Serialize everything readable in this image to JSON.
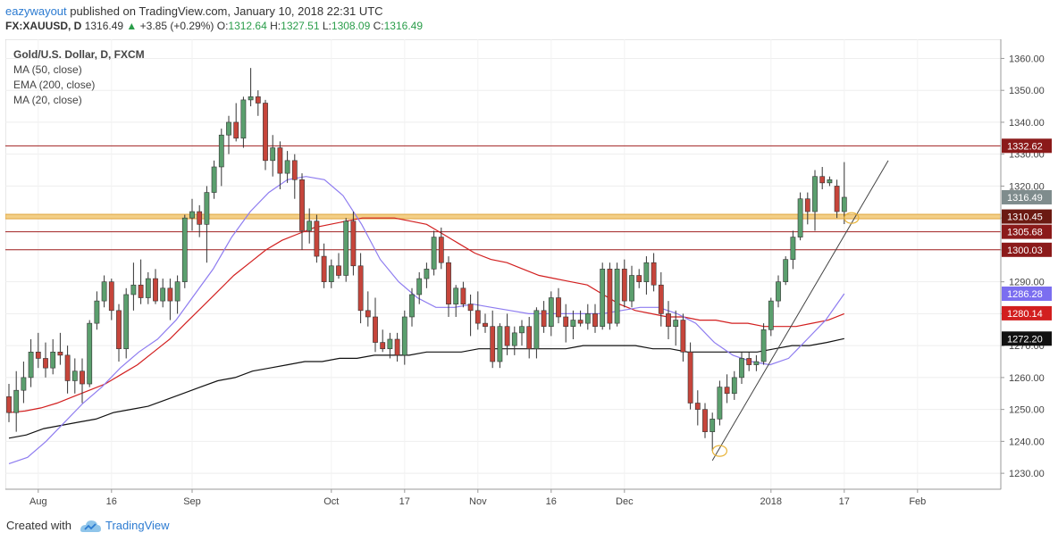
{
  "header": {
    "author": "eazywayout",
    "published_text": "published on TradingView.com, January 10, 2018 22:31 UTC",
    "symbol": "FX:XAUUSD, D",
    "last": "1316.49",
    "change_arrow": "▲",
    "change": "+3.85 (+0.29%)",
    "open_label": "O:",
    "open": "1312.64",
    "high_label": "H:",
    "high": "1327.51",
    "low_label": "L:",
    "low": "1308.09",
    "close_label": "C:",
    "close": "1316.49"
  },
  "legend": {
    "title": "Gold/U.S. Dollar, D, FXCM",
    "lines": [
      "MA (50, close)",
      "EMA (200, close)",
      "MA (20, close)"
    ]
  },
  "footer": {
    "created_with": "Created with",
    "brand": "TradingView"
  },
  "colors": {
    "up": "#5b9f6e",
    "down": "#c6453b",
    "ma50": "#d21f1f",
    "ema200": "#111111",
    "ma20": "#8e7cf0",
    "hline": "#a02020",
    "band": "#e0a640",
    "trend": "#444444"
  },
  "chart_data": {
    "type": "candlestick",
    "title": "Gold/U.S. Dollar, D, FXCM",
    "ylim": [
      1225,
      1366
    ],
    "y_ticks": [
      1230,
      1240,
      1250,
      1260,
      1270,
      1280,
      1290,
      1300,
      1310,
      1320,
      1330,
      1340,
      1350,
      1360
    ],
    "x_ticks": [
      "Aug",
      "16",
      "Sep",
      "Oct",
      "17",
      "Nov",
      "16",
      "Dec",
      "2018",
      "17",
      "Feb"
    ],
    "candles": [
      {
        "o": 1254,
        "h": 1258,
        "l": 1246,
        "c": 1249
      },
      {
        "o": 1249,
        "h": 1262,
        "l": 1243,
        "c": 1256
      },
      {
        "o": 1256,
        "h": 1265,
        "l": 1252,
        "c": 1260
      },
      {
        "o": 1260,
        "h": 1272,
        "l": 1257,
        "c": 1268
      },
      {
        "o": 1268,
        "h": 1274,
        "l": 1263,
        "c": 1266
      },
      {
        "o": 1266,
        "h": 1271,
        "l": 1260,
        "c": 1263
      },
      {
        "o": 1263,
        "h": 1272,
        "l": 1261,
        "c": 1268
      },
      {
        "o": 1268,
        "h": 1274,
        "l": 1264,
        "c": 1267
      },
      {
        "o": 1267,
        "h": 1270,
        "l": 1255,
        "c": 1259
      },
      {
        "o": 1259,
        "h": 1266,
        "l": 1255,
        "c": 1262
      },
      {
        "o": 1262,
        "h": 1266,
        "l": 1252,
        "c": 1258
      },
      {
        "o": 1258,
        "h": 1278,
        "l": 1257,
        "c": 1277
      },
      {
        "o": 1277,
        "h": 1287,
        "l": 1275,
        "c": 1284
      },
      {
        "o": 1284,
        "h": 1292,
        "l": 1282,
        "c": 1290
      },
      {
        "o": 1290,
        "h": 1291,
        "l": 1278,
        "c": 1281
      },
      {
        "o": 1281,
        "h": 1283,
        "l": 1265,
        "c": 1269
      },
      {
        "o": 1269,
        "h": 1288,
        "l": 1266,
        "c": 1286
      },
      {
        "o": 1286,
        "h": 1296,
        "l": 1281,
        "c": 1289
      },
      {
        "o": 1289,
        "h": 1297,
        "l": 1283,
        "c": 1285
      },
      {
        "o": 1285,
        "h": 1293,
        "l": 1283,
        "c": 1291
      },
      {
        "o": 1291,
        "h": 1294,
        "l": 1283,
        "c": 1284
      },
      {
        "o": 1284,
        "h": 1291,
        "l": 1282,
        "c": 1288
      },
      {
        "o": 1288,
        "h": 1291,
        "l": 1278,
        "c": 1284
      },
      {
        "o": 1284,
        "h": 1292,
        "l": 1280,
        "c": 1290
      },
      {
        "o": 1290,
        "h": 1311,
        "l": 1288,
        "c": 1310
      },
      {
        "o": 1310,
        "h": 1316,
        "l": 1306,
        "c": 1312
      },
      {
        "o": 1312,
        "h": 1314,
        "l": 1304,
        "c": 1308
      },
      {
        "o": 1308,
        "h": 1320,
        "l": 1296,
        "c": 1318
      },
      {
        "o": 1318,
        "h": 1328,
        "l": 1316,
        "c": 1326
      },
      {
        "o": 1326,
        "h": 1338,
        "l": 1320,
        "c": 1336
      },
      {
        "o": 1336,
        "h": 1342,
        "l": 1330,
        "c": 1340
      },
      {
        "o": 1340,
        "h": 1346,
        "l": 1334,
        "c": 1335
      },
      {
        "o": 1335,
        "h": 1348,
        "l": 1332,
        "c": 1347
      },
      {
        "o": 1347,
        "h": 1357,
        "l": 1345,
        "c": 1348
      },
      {
        "o": 1348,
        "h": 1350,
        "l": 1342,
        "c": 1346
      },
      {
        "o": 1346,
        "h": 1347,
        "l": 1325,
        "c": 1328
      },
      {
        "o": 1328,
        "h": 1336,
        "l": 1323,
        "c": 1332
      },
      {
        "o": 1332,
        "h": 1334,
        "l": 1319,
        "c": 1324
      },
      {
        "o": 1324,
        "h": 1331,
        "l": 1321,
        "c": 1328
      },
      {
        "o": 1328,
        "h": 1330,
        "l": 1316,
        "c": 1322
      },
      {
        "o": 1322,
        "h": 1324,
        "l": 1300,
        "c": 1306
      },
      {
        "o": 1306,
        "h": 1313,
        "l": 1302,
        "c": 1309
      },
      {
        "o": 1309,
        "h": 1311,
        "l": 1296,
        "c": 1298
      },
      {
        "o": 1298,
        "h": 1302,
        "l": 1288,
        "c": 1290
      },
      {
        "o": 1290,
        "h": 1297,
        "l": 1288,
        "c": 1295
      },
      {
        "o": 1295,
        "h": 1299,
        "l": 1291,
        "c": 1292
      },
      {
        "o": 1292,
        "h": 1310,
        "l": 1290,
        "c": 1309
      },
      {
        "o": 1309,
        "h": 1312,
        "l": 1292,
        "c": 1295
      },
      {
        "o": 1295,
        "h": 1299,
        "l": 1277,
        "c": 1281
      },
      {
        "o": 1281,
        "h": 1287,
        "l": 1276,
        "c": 1279
      },
      {
        "o": 1279,
        "h": 1285,
        "l": 1268,
        "c": 1271
      },
      {
        "o": 1271,
        "h": 1275,
        "l": 1268,
        "c": 1269
      },
      {
        "o": 1269,
        "h": 1274,
        "l": 1266,
        "c": 1272
      },
      {
        "o": 1272,
        "h": 1274,
        "l": 1265,
        "c": 1267
      },
      {
        "o": 1267,
        "h": 1281,
        "l": 1264,
        "c": 1279
      },
      {
        "o": 1279,
        "h": 1288,
        "l": 1276,
        "c": 1286
      },
      {
        "o": 1286,
        "h": 1293,
        "l": 1283,
        "c": 1291
      },
      {
        "o": 1291,
        "h": 1296,
        "l": 1288,
        "c": 1294
      },
      {
        "o": 1294,
        "h": 1306,
        "l": 1292,
        "c": 1304
      },
      {
        "o": 1304,
        "h": 1307,
        "l": 1294,
        "c": 1296
      },
      {
        "o": 1296,
        "h": 1298,
        "l": 1279,
        "c": 1283
      },
      {
        "o": 1283,
        "h": 1289,
        "l": 1279,
        "c": 1288
      },
      {
        "o": 1288,
        "h": 1290,
        "l": 1282,
        "c": 1283
      },
      {
        "o": 1283,
        "h": 1286,
        "l": 1273,
        "c": 1281
      },
      {
        "o": 1281,
        "h": 1287,
        "l": 1275,
        "c": 1277
      },
      {
        "o": 1277,
        "h": 1280,
        "l": 1274,
        "c": 1276
      },
      {
        "o": 1276,
        "h": 1281,
        "l": 1263,
        "c": 1265
      },
      {
        "o": 1265,
        "h": 1277,
        "l": 1263,
        "c": 1276
      },
      {
        "o": 1276,
        "h": 1280,
        "l": 1267,
        "c": 1270
      },
      {
        "o": 1270,
        "h": 1276,
        "l": 1267,
        "c": 1274
      },
      {
        "o": 1274,
        "h": 1278,
        "l": 1270,
        "c": 1276
      },
      {
        "o": 1276,
        "h": 1279,
        "l": 1266,
        "c": 1269
      },
      {
        "o": 1269,
        "h": 1282,
        "l": 1266,
        "c": 1281
      },
      {
        "o": 1281,
        "h": 1284,
        "l": 1274,
        "c": 1276
      },
      {
        "o": 1276,
        "h": 1287,
        "l": 1273,
        "c": 1285
      },
      {
        "o": 1285,
        "h": 1288,
        "l": 1277,
        "c": 1279
      },
      {
        "o": 1279,
        "h": 1283,
        "l": 1271,
        "c": 1276
      },
      {
        "o": 1276,
        "h": 1281,
        "l": 1272,
        "c": 1278
      },
      {
        "o": 1278,
        "h": 1281,
        "l": 1276,
        "c": 1277
      },
      {
        "o": 1277,
        "h": 1283,
        "l": 1275,
        "c": 1280
      },
      {
        "o": 1280,
        "h": 1283,
        "l": 1274,
        "c": 1276
      },
      {
        "o": 1276,
        "h": 1296,
        "l": 1275,
        "c": 1294
      },
      {
        "o": 1294,
        "h": 1296,
        "l": 1275,
        "c": 1277
      },
      {
        "o": 1277,
        "h": 1296,
        "l": 1276,
        "c": 1294
      },
      {
        "o": 1294,
        "h": 1297,
        "l": 1282,
        "c": 1284
      },
      {
        "o": 1284,
        "h": 1295,
        "l": 1282,
        "c": 1292
      },
      {
        "o": 1292,
        "h": 1294,
        "l": 1288,
        "c": 1290
      },
      {
        "o": 1290,
        "h": 1298,
        "l": 1286,
        "c": 1296
      },
      {
        "o": 1296,
        "h": 1299,
        "l": 1287,
        "c": 1289
      },
      {
        "o": 1289,
        "h": 1293,
        "l": 1276,
        "c": 1280
      },
      {
        "o": 1280,
        "h": 1284,
        "l": 1272,
        "c": 1276
      },
      {
        "o": 1276,
        "h": 1281,
        "l": 1270,
        "c": 1278
      },
      {
        "o": 1278,
        "h": 1280,
        "l": 1265,
        "c": 1268
      },
      {
        "o": 1268,
        "h": 1271,
        "l": 1250,
        "c": 1252
      },
      {
        "o": 1252,
        "h": 1256,
        "l": 1245,
        "c": 1250
      },
      {
        "o": 1250,
        "h": 1252,
        "l": 1241,
        "c": 1243
      },
      {
        "o": 1243,
        "h": 1249,
        "l": 1237,
        "c": 1247
      },
      {
        "o": 1247,
        "h": 1259,
        "l": 1245,
        "c": 1257
      },
      {
        "o": 1257,
        "h": 1261,
        "l": 1252,
        "c": 1255
      },
      {
        "o": 1255,
        "h": 1262,
        "l": 1253,
        "c": 1260
      },
      {
        "o": 1260,
        "h": 1268,
        "l": 1258,
        "c": 1266
      },
      {
        "o": 1266,
        "h": 1268,
        "l": 1262,
        "c": 1264
      },
      {
        "o": 1264,
        "h": 1267,
        "l": 1262,
        "c": 1265
      },
      {
        "o": 1265,
        "h": 1277,
        "l": 1264,
        "c": 1275
      },
      {
        "o": 1275,
        "h": 1285,
        "l": 1273,
        "c": 1284
      },
      {
        "o": 1284,
        "h": 1292,
        "l": 1282,
        "c": 1290
      },
      {
        "o": 1290,
        "h": 1298,
        "l": 1289,
        "c": 1297
      },
      {
        "o": 1297,
        "h": 1306,
        "l": 1294,
        "c": 1304
      },
      {
        "o": 1304,
        "h": 1318,
        "l": 1303,
        "c": 1316
      },
      {
        "o": 1316,
        "h": 1318,
        "l": 1308,
        "c": 1312
      },
      {
        "o": 1312,
        "h": 1325,
        "l": 1306,
        "c": 1323
      },
      {
        "o": 1323,
        "h": 1326,
        "l": 1319,
        "c": 1321
      },
      {
        "o": 1321,
        "h": 1323,
        "l": 1320,
        "c": 1322
      },
      {
        "o": 1320,
        "h": 1322,
        "l": 1310,
        "c": 1312
      },
      {
        "o": 1312,
        "h": 1327.51,
        "l": 1308.09,
        "c": 1316.49
      }
    ],
    "ma50": [
      1249,
      1249.5,
      1250.5,
      1252,
      1254,
      1256,
      1258,
      1261,
      1264,
      1268,
      1272,
      1277,
      1282,
      1287,
      1292,
      1296,
      1300,
      1303,
      1305,
      1307,
      1308,
      1309,
      1310,
      1310,
      1310,
      1309,
      1308,
      1305,
      1302,
      1299,
      1297,
      1296,
      1294,
      1292,
      1291,
      1290,
      1289,
      1286,
      1283,
      1281,
      1280,
      1279,
      1279,
      1278,
      1278,
      1277,
      1277,
      1276,
      1276,
      1276,
      1277,
      1278,
      1280
    ],
    "ema200": [
      1241,
      1242,
      1244,
      1245,
      1246,
      1247,
      1249,
      1250,
      1251,
      1253,
      1255,
      1257,
      1259,
      1260,
      1262,
      1263,
      1264,
      1265,
      1265,
      1266,
      1266,
      1267,
      1267,
      1267,
      1268,
      1268,
      1268,
      1269,
      1269,
      1269,
      1269,
      1269,
      1269,
      1270,
      1270,
      1270,
      1270,
      1269,
      1269,
      1268,
      1268,
      1268,
      1268,
      1268,
      1269,
      1270,
      1270,
      1271,
      1272.2
    ],
    "ma20": [
      1233,
      1235,
      1240,
      1246,
      1252,
      1257,
      1263,
      1268,
      1272,
      1278,
      1286,
      1294,
      1304,
      1312,
      1318,
      1322,
      1323,
      1322,
      1317,
      1308,
      1297,
      1290,
      1285,
      1282,
      1282,
      1283,
      1282,
      1281,
      1280,
      1280,
      1280,
      1280,
      1280,
      1281,
      1282,
      1282,
      1280,
      1277,
      1271,
      1267,
      1265,
      1264,
      1266,
      1272,
      1278,
      1286.28
    ],
    "price_levels": [
      {
        "value": 1332.62,
        "label": "1332.62",
        "kind": "resistance"
      },
      {
        "value": 1310.45,
        "label": "1310.45",
        "kind": "band"
      },
      {
        "value": 1305.68,
        "label": "1305.68",
        "kind": "resistance"
      },
      {
        "value": 1300.03,
        "label": "1300.03",
        "kind": "resistance"
      }
    ],
    "axis_badges": [
      {
        "value": 1316.49,
        "label": "1316.49",
        "kind": "last"
      },
      {
        "value": 1286.28,
        "label": "1286.28",
        "kind": "ma20"
      },
      {
        "value": 1280.14,
        "label": "1280.14",
        "kind": "ma50"
      },
      {
        "value": 1272.2,
        "label": "1272.20",
        "kind": "ema200"
      }
    ],
    "trendline": {
      "from": {
        "bar": 96,
        "price": 1234
      },
      "to": {
        "bar": 120,
        "price": 1328
      }
    },
    "markers": [
      {
        "bar": 97,
        "price": 1237
      },
      {
        "bar": 115,
        "price": 1310
      }
    ],
    "grid": true,
    "legend_position": "top-left"
  }
}
